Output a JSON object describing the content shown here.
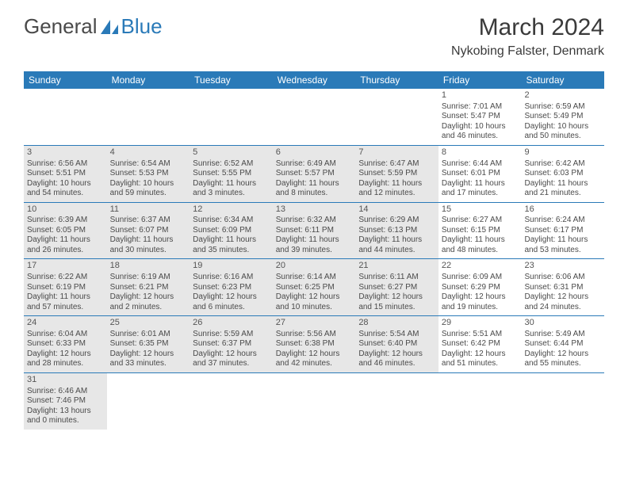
{
  "logo": {
    "text1": "General",
    "text2": "Blue"
  },
  "title": "March 2024",
  "location": "Nykobing Falster, Denmark",
  "colors": {
    "header_bg": "#2a7ab8",
    "header_text": "#ffffff",
    "shaded_cell": "#e7e7e7",
    "row_border": "#2a7ab8",
    "body_text": "#4a4a4a"
  },
  "weekdays": [
    "Sunday",
    "Monday",
    "Tuesday",
    "Wednesday",
    "Thursday",
    "Friday",
    "Saturday"
  ],
  "weeks": [
    [
      {
        "day": "",
        "shaded": false
      },
      {
        "day": "",
        "shaded": false
      },
      {
        "day": "",
        "shaded": false
      },
      {
        "day": "",
        "shaded": false
      },
      {
        "day": "",
        "shaded": false
      },
      {
        "day": "1",
        "shaded": false,
        "sunrise": "Sunrise: 7:01 AM",
        "sunset": "Sunset: 5:47 PM",
        "daylight1": "Daylight: 10 hours",
        "daylight2": "and 46 minutes."
      },
      {
        "day": "2",
        "shaded": false,
        "sunrise": "Sunrise: 6:59 AM",
        "sunset": "Sunset: 5:49 PM",
        "daylight1": "Daylight: 10 hours",
        "daylight2": "and 50 minutes."
      }
    ],
    [
      {
        "day": "3",
        "shaded": true,
        "sunrise": "Sunrise: 6:56 AM",
        "sunset": "Sunset: 5:51 PM",
        "daylight1": "Daylight: 10 hours",
        "daylight2": "and 54 minutes."
      },
      {
        "day": "4",
        "shaded": true,
        "sunrise": "Sunrise: 6:54 AM",
        "sunset": "Sunset: 5:53 PM",
        "daylight1": "Daylight: 10 hours",
        "daylight2": "and 59 minutes."
      },
      {
        "day": "5",
        "shaded": true,
        "sunrise": "Sunrise: 6:52 AM",
        "sunset": "Sunset: 5:55 PM",
        "daylight1": "Daylight: 11 hours",
        "daylight2": "and 3 minutes."
      },
      {
        "day": "6",
        "shaded": true,
        "sunrise": "Sunrise: 6:49 AM",
        "sunset": "Sunset: 5:57 PM",
        "daylight1": "Daylight: 11 hours",
        "daylight2": "and 8 minutes."
      },
      {
        "day": "7",
        "shaded": true,
        "sunrise": "Sunrise: 6:47 AM",
        "sunset": "Sunset: 5:59 PM",
        "daylight1": "Daylight: 11 hours",
        "daylight2": "and 12 minutes."
      },
      {
        "day": "8",
        "shaded": false,
        "sunrise": "Sunrise: 6:44 AM",
        "sunset": "Sunset: 6:01 PM",
        "daylight1": "Daylight: 11 hours",
        "daylight2": "and 17 minutes."
      },
      {
        "day": "9",
        "shaded": false,
        "sunrise": "Sunrise: 6:42 AM",
        "sunset": "Sunset: 6:03 PM",
        "daylight1": "Daylight: 11 hours",
        "daylight2": "and 21 minutes."
      }
    ],
    [
      {
        "day": "10",
        "shaded": true,
        "sunrise": "Sunrise: 6:39 AM",
        "sunset": "Sunset: 6:05 PM",
        "daylight1": "Daylight: 11 hours",
        "daylight2": "and 26 minutes."
      },
      {
        "day": "11",
        "shaded": true,
        "sunrise": "Sunrise: 6:37 AM",
        "sunset": "Sunset: 6:07 PM",
        "daylight1": "Daylight: 11 hours",
        "daylight2": "and 30 minutes."
      },
      {
        "day": "12",
        "shaded": true,
        "sunrise": "Sunrise: 6:34 AM",
        "sunset": "Sunset: 6:09 PM",
        "daylight1": "Daylight: 11 hours",
        "daylight2": "and 35 minutes."
      },
      {
        "day": "13",
        "shaded": true,
        "sunrise": "Sunrise: 6:32 AM",
        "sunset": "Sunset: 6:11 PM",
        "daylight1": "Daylight: 11 hours",
        "daylight2": "and 39 minutes."
      },
      {
        "day": "14",
        "shaded": true,
        "sunrise": "Sunrise: 6:29 AM",
        "sunset": "Sunset: 6:13 PM",
        "daylight1": "Daylight: 11 hours",
        "daylight2": "and 44 minutes."
      },
      {
        "day": "15",
        "shaded": false,
        "sunrise": "Sunrise: 6:27 AM",
        "sunset": "Sunset: 6:15 PM",
        "daylight1": "Daylight: 11 hours",
        "daylight2": "and 48 minutes."
      },
      {
        "day": "16",
        "shaded": false,
        "sunrise": "Sunrise: 6:24 AM",
        "sunset": "Sunset: 6:17 PM",
        "daylight1": "Daylight: 11 hours",
        "daylight2": "and 53 minutes."
      }
    ],
    [
      {
        "day": "17",
        "shaded": true,
        "sunrise": "Sunrise: 6:22 AM",
        "sunset": "Sunset: 6:19 PM",
        "daylight1": "Daylight: 11 hours",
        "daylight2": "and 57 minutes."
      },
      {
        "day": "18",
        "shaded": true,
        "sunrise": "Sunrise: 6:19 AM",
        "sunset": "Sunset: 6:21 PM",
        "daylight1": "Daylight: 12 hours",
        "daylight2": "and 2 minutes."
      },
      {
        "day": "19",
        "shaded": true,
        "sunrise": "Sunrise: 6:16 AM",
        "sunset": "Sunset: 6:23 PM",
        "daylight1": "Daylight: 12 hours",
        "daylight2": "and 6 minutes."
      },
      {
        "day": "20",
        "shaded": true,
        "sunrise": "Sunrise: 6:14 AM",
        "sunset": "Sunset: 6:25 PM",
        "daylight1": "Daylight: 12 hours",
        "daylight2": "and 10 minutes."
      },
      {
        "day": "21",
        "shaded": true,
        "sunrise": "Sunrise: 6:11 AM",
        "sunset": "Sunset: 6:27 PM",
        "daylight1": "Daylight: 12 hours",
        "daylight2": "and 15 minutes."
      },
      {
        "day": "22",
        "shaded": false,
        "sunrise": "Sunrise: 6:09 AM",
        "sunset": "Sunset: 6:29 PM",
        "daylight1": "Daylight: 12 hours",
        "daylight2": "and 19 minutes."
      },
      {
        "day": "23",
        "shaded": false,
        "sunrise": "Sunrise: 6:06 AM",
        "sunset": "Sunset: 6:31 PM",
        "daylight1": "Daylight: 12 hours",
        "daylight2": "and 24 minutes."
      }
    ],
    [
      {
        "day": "24",
        "shaded": true,
        "sunrise": "Sunrise: 6:04 AM",
        "sunset": "Sunset: 6:33 PM",
        "daylight1": "Daylight: 12 hours",
        "daylight2": "and 28 minutes."
      },
      {
        "day": "25",
        "shaded": true,
        "sunrise": "Sunrise: 6:01 AM",
        "sunset": "Sunset: 6:35 PM",
        "daylight1": "Daylight: 12 hours",
        "daylight2": "and 33 minutes."
      },
      {
        "day": "26",
        "shaded": true,
        "sunrise": "Sunrise: 5:59 AM",
        "sunset": "Sunset: 6:37 PM",
        "daylight1": "Daylight: 12 hours",
        "daylight2": "and 37 minutes."
      },
      {
        "day": "27",
        "shaded": true,
        "sunrise": "Sunrise: 5:56 AM",
        "sunset": "Sunset: 6:38 PM",
        "daylight1": "Daylight: 12 hours",
        "daylight2": "and 42 minutes."
      },
      {
        "day": "28",
        "shaded": true,
        "sunrise": "Sunrise: 5:54 AM",
        "sunset": "Sunset: 6:40 PM",
        "daylight1": "Daylight: 12 hours",
        "daylight2": "and 46 minutes."
      },
      {
        "day": "29",
        "shaded": false,
        "sunrise": "Sunrise: 5:51 AM",
        "sunset": "Sunset: 6:42 PM",
        "daylight1": "Daylight: 12 hours",
        "daylight2": "and 51 minutes."
      },
      {
        "day": "30",
        "shaded": false,
        "sunrise": "Sunrise: 5:49 AM",
        "sunset": "Sunset: 6:44 PM",
        "daylight1": "Daylight: 12 hours",
        "daylight2": "and 55 minutes."
      }
    ],
    [
      {
        "day": "31",
        "shaded": true,
        "sunrise": "Sunrise: 6:46 AM",
        "sunset": "Sunset: 7:46 PM",
        "daylight1": "Daylight: 13 hours",
        "daylight2": "and 0 minutes."
      },
      {
        "day": "",
        "shaded": false
      },
      {
        "day": "",
        "shaded": false
      },
      {
        "day": "",
        "shaded": false
      },
      {
        "day": "",
        "shaded": false
      },
      {
        "day": "",
        "shaded": false
      },
      {
        "day": "",
        "shaded": false
      }
    ]
  ]
}
